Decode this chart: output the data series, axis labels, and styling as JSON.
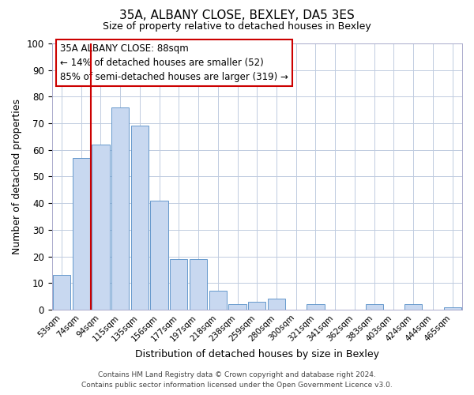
{
  "title": "35A, ALBANY CLOSE, BEXLEY, DA5 3ES",
  "subtitle": "Size of property relative to detached houses in Bexley",
  "xlabel": "Distribution of detached houses by size in Bexley",
  "ylabel": "Number of detached properties",
  "bin_labels": [
    "53sqm",
    "74sqm",
    "94sqm",
    "115sqm",
    "135sqm",
    "156sqm",
    "177sqm",
    "197sqm",
    "218sqm",
    "238sqm",
    "259sqm",
    "280sqm",
    "300sqm",
    "321sqm",
    "341sqm",
    "362sqm",
    "383sqm",
    "403sqm",
    "424sqm",
    "444sqm",
    "465sqm"
  ],
  "bar_heights": [
    13,
    57,
    62,
    76,
    69,
    41,
    19,
    19,
    7,
    2,
    3,
    4,
    0,
    2,
    0,
    0,
    2,
    0,
    2,
    0,
    1
  ],
  "bar_color": "#c8d8f0",
  "bar_edge_color": "#6699cc",
  "vline_color": "#cc0000",
  "annotation_text": "35A ALBANY CLOSE: 88sqm\n← 14% of detached houses are smaller (52)\n85% of semi-detached houses are larger (319) →",
  "annotation_box_color": "#ffffff",
  "annotation_box_edge_color": "#cc0000",
  "ylim": [
    0,
    100
  ],
  "yticks": [
    0,
    10,
    20,
    30,
    40,
    50,
    60,
    70,
    80,
    90,
    100
  ],
  "footer_line1": "Contains HM Land Registry data © Crown copyright and database right 2024.",
  "footer_line2": "Contains public sector information licensed under the Open Government Licence v3.0.",
  "background_color": "#ffffff",
  "grid_color": "#c0cce0"
}
